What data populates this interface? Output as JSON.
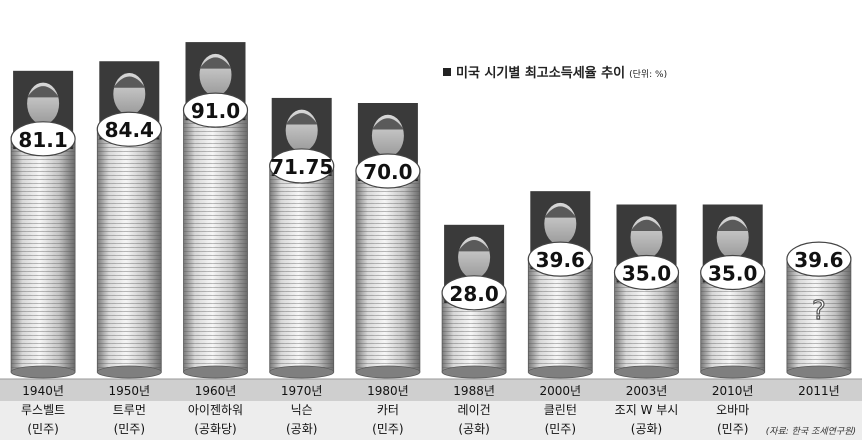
{
  "title": "미국 시기별 최고소득세율 추이",
  "unit": "(단위: %)",
  "source": "(자료: 한국 조세연구원)",
  "colors": {
    "coin_light": "#f4f4f4",
    "coin_dark": "#8a8a8a",
    "coin_edge": "#5a5a5a",
    "label_fill": "#ffffff",
    "band_dark": "#cfcfcf",
    "band_light": "#ededed"
  },
  "chart_data": {
    "type": "bar",
    "title": "미국 시기별 최고소득세율 추이",
    "unit": "(단위: %)",
    "ylim": [
      0,
      100
    ],
    "categories": [
      "1940년",
      "1950년",
      "1960년",
      "1970년",
      "1980년",
      "1988년",
      "2000년",
      "2003년",
      "2010년",
      "2011년"
    ],
    "presidents": [
      "루스벨트",
      "트루먼",
      "아이젠하워",
      "닉슨",
      "카터",
      "레이건",
      "클린턴",
      "조지 W 부시",
      "오바마",
      ""
    ],
    "parties": [
      "(민주)",
      "(민주)",
      "(공화당)",
      "(공화)",
      "(민주)",
      "(공화)",
      "(민주)",
      "(공화)",
      "(민주)",
      ""
    ],
    "values": [
      81.1,
      84.4,
      91.0,
      71.75,
      70.0,
      28.0,
      39.6,
      35.0,
      35.0,
      39.6
    ],
    "value_labels": [
      "81.1",
      "84.4",
      "91.0",
      "71.75",
      "70.0",
      "28.0",
      "39.6",
      "35.0",
      "35.0",
      "39.6"
    ],
    "portraits": [
      "portrait",
      "portrait",
      "portrait",
      "portrait",
      "portrait",
      "portrait",
      "portrait",
      "portrait",
      "portrait",
      ""
    ],
    "question_mark": "?"
  }
}
